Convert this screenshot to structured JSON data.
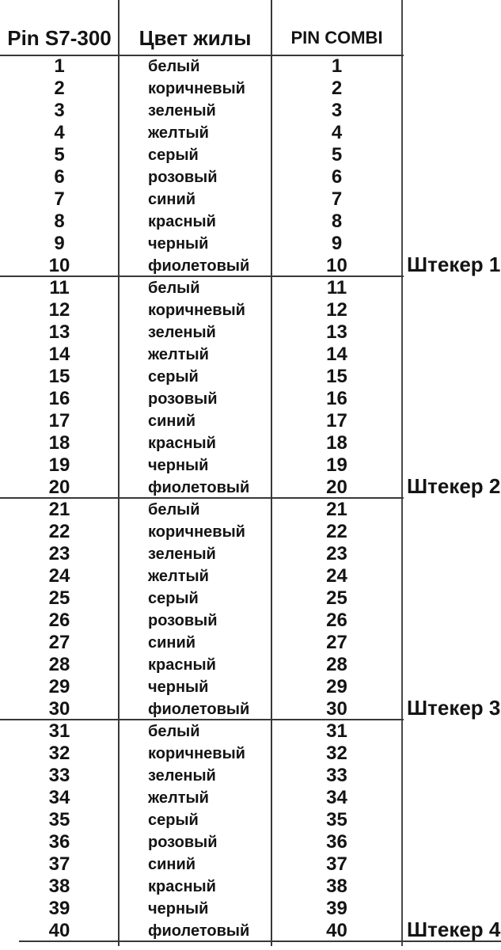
{
  "table": {
    "headers": {
      "pin_s7": "Pin S7-300",
      "wire_color": "Цвет жилы",
      "pin_combi": "PIN COMBI"
    },
    "sections": [
      {
        "plug_label": "Штекер 1",
        "rows": [
          {
            "pin": "1",
            "color": "белый",
            "combi": "1"
          },
          {
            "pin": "2",
            "color": "коричневый",
            "combi": "2"
          },
          {
            "pin": "3",
            "color": "зеленый",
            "combi": "3"
          },
          {
            "pin": "4",
            "color": "желтый",
            "combi": "4"
          },
          {
            "pin": "5",
            "color": "серый",
            "combi": "5"
          },
          {
            "pin": "6",
            "color": "розовый",
            "combi": "6"
          },
          {
            "pin": "7",
            "color": "синий",
            "combi": "7"
          },
          {
            "pin": "8",
            "color": "красный",
            "combi": "8"
          },
          {
            "pin": "9",
            "color": "черный",
            "combi": "9"
          },
          {
            "pin": "10",
            "color": "фиолетовый",
            "combi": "10"
          }
        ]
      },
      {
        "plug_label": "Штекер 2",
        "rows": [
          {
            "pin": "11",
            "color": "белый",
            "combi": "11"
          },
          {
            "pin": "12",
            "color": "коричневый",
            "combi": "12"
          },
          {
            "pin": "13",
            "color": "зеленый",
            "combi": "13"
          },
          {
            "pin": "14",
            "color": "желтый",
            "combi": "14"
          },
          {
            "pin": "15",
            "color": "серый",
            "combi": "15"
          },
          {
            "pin": "16",
            "color": "розовый",
            "combi": "16"
          },
          {
            "pin": "17",
            "color": "синий",
            "combi": "17"
          },
          {
            "pin": "18",
            "color": "красный",
            "combi": "18"
          },
          {
            "pin": "19",
            "color": "черный",
            "combi": "19"
          },
          {
            "pin": "20",
            "color": "фиолетовый",
            "combi": "20"
          }
        ]
      },
      {
        "plug_label": "Штекер 3",
        "rows": [
          {
            "pin": "21",
            "color": "белый",
            "combi": "21"
          },
          {
            "pin": "22",
            "color": "коричневый",
            "combi": "22"
          },
          {
            "pin": "23",
            "color": "зеленый",
            "combi": "23"
          },
          {
            "pin": "24",
            "color": "желтый",
            "combi": "24"
          },
          {
            "pin": "25",
            "color": "серый",
            "combi": "25"
          },
          {
            "pin": "26",
            "color": "розовый",
            "combi": "26"
          },
          {
            "pin": "27",
            "color": "синий",
            "combi": "27"
          },
          {
            "pin": "28",
            "color": "красный",
            "combi": "28"
          },
          {
            "pin": "29",
            "color": "черный",
            "combi": "29"
          },
          {
            "pin": "30",
            "color": "фиолетовый",
            "combi": "30"
          }
        ]
      },
      {
        "plug_label": "Штекер 4",
        "rows": [
          {
            "pin": "31",
            "color": "белый",
            "combi": "31"
          },
          {
            "pin": "32",
            "color": "коричневый",
            "combi": "32"
          },
          {
            "pin": "33",
            "color": "зеленый",
            "combi": "33"
          },
          {
            "pin": "34",
            "color": "желтый",
            "combi": "34"
          },
          {
            "pin": "35",
            "color": "серый",
            "combi": "35"
          },
          {
            "pin": "36",
            "color": "розовый",
            "combi": "36"
          },
          {
            "pin": "37",
            "color": "синий",
            "combi": "37"
          },
          {
            "pin": "38",
            "color": "красный",
            "combi": "38"
          },
          {
            "pin": "39",
            "color": "черный",
            "combi": "39"
          },
          {
            "pin": "40",
            "color": "фиолетовый",
            "combi": "40"
          }
        ]
      }
    ]
  },
  "colors": {
    "text": "#141414",
    "line": "#383838",
    "background": "#ffffff"
  }
}
